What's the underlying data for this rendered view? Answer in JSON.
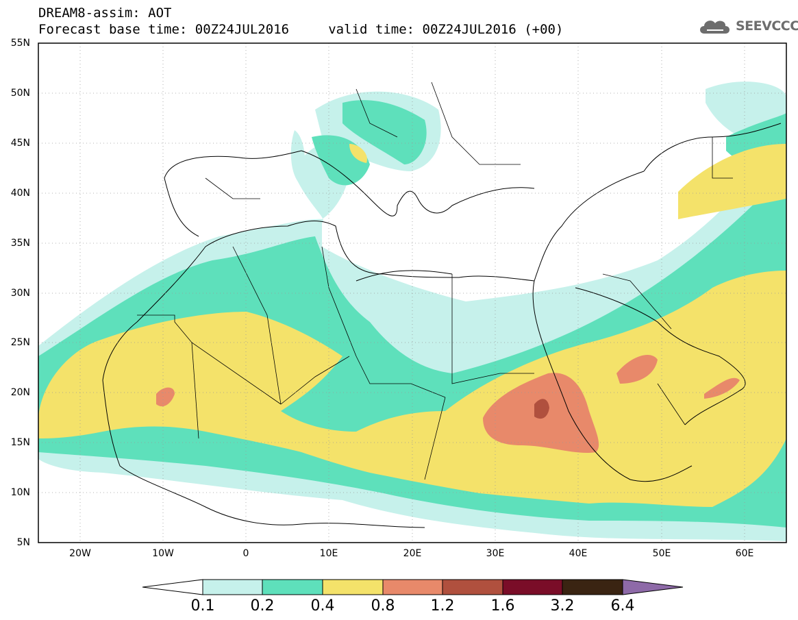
{
  "header": {
    "title_line1": "DREAM8-assim: AOT",
    "title_line2": "Forecast base time: 00Z24JUL2016     valid time: 00Z24JUL2016 (+00)",
    "logo_text": "SEEVCCC",
    "logo_icon": "cloud-icon"
  },
  "map": {
    "lat_labels": [
      "55N",
      "50N",
      "45N",
      "40N",
      "35N",
      "30N",
      "25N",
      "20N",
      "15N",
      "10N",
      "5N"
    ],
    "lon_labels": [
      "20W",
      "10W",
      "0",
      "10E",
      "20E",
      "30E",
      "40E",
      "50E",
      "60E"
    ],
    "lon_range": [
      -25,
      65
    ],
    "lat_range": [
      5,
      55
    ]
  },
  "colorbar": {
    "levels": [
      "0.1",
      "0.2",
      "0.4",
      "0.8",
      "1.2",
      "1.6",
      "3.2",
      "6.4"
    ],
    "colors": [
      "#ffffff",
      "#c6f1eb",
      "#5ee0bb",
      "#f4e26a",
      "#e8896a",
      "#b0503e",
      "#7a0d28",
      "#3a2412",
      "#8e6aa8"
    ]
  },
  "colors": {
    "aot_0_1": "#c6f1eb",
    "aot_0_2": "#5ee0bb",
    "aot_0_4": "#f4e26a",
    "aot_0_8": "#e8896a",
    "aot_1_2": "#b0503e"
  }
}
